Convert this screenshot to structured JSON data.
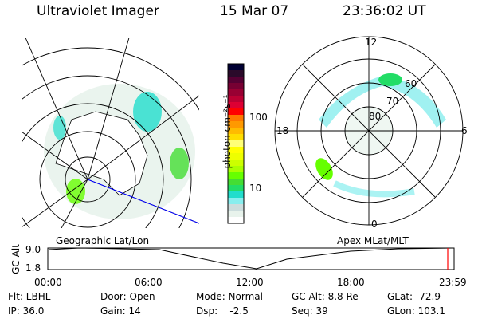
{
  "header": {
    "instrument": "Ultraviolet Imager",
    "date": "15 Mar 07",
    "time": "23:36:02 UT"
  },
  "colorbar": {
    "label": "photon cm⁻²s⁻¹",
    "ticks": [
      "100",
      "10"
    ],
    "colors": [
      "#000033",
      "#2a0a2a",
      "#550033",
      "#770033",
      "#990033",
      "#bb0033",
      "#dd0033",
      "#ff0000",
      "#ff7700",
      "#ff9900",
      "#ffbb00",
      "#ffdd00",
      "#ffff77",
      "#ffff00",
      "#eeff00",
      "#ccff00",
      "#aaff00",
      "#66ff00",
      "#44dd33",
      "#22dd66",
      "#22ddcc",
      "#88eeee",
      "#ccdddd",
      "#e8f3ec",
      "#ffffff"
    ]
  },
  "left_map": {
    "label": "Geographic Lat/Lon"
  },
  "right_map": {
    "label": "Apex MLat/MLT",
    "mlt_labels": {
      "top": "12",
      "left": "18",
      "right": "6",
      "bottom": "0"
    },
    "lat_labels": [
      "80",
      "70",
      "60"
    ]
  },
  "altitude_plot": {
    "ylabel": "GC Alt",
    "yticks": [
      "9.0",
      "1.8"
    ],
    "xticks": [
      "00:00",
      "06:00",
      "12:00",
      "18:00",
      "23:59"
    ],
    "current_marker_color": "#ff0000"
  },
  "status": [
    [
      {
        "text": "Flt: LBHL"
      },
      {
        "text": "IP: 36.0"
      }
    ],
    [
      {
        "text": "Door: Open"
      },
      {
        "text": "Gain: 14"
      }
    ],
    [
      {
        "text": "Mode: Normal"
      },
      {
        "text": "Dsp:    -2.5"
      }
    ],
    [
      {
        "text": "GC Alt: 8.8 Re"
      },
      {
        "text": "Seq: 39"
      }
    ],
    [
      {
        "text": "GLat: -72.9"
      },
      {
        "text": "GLon: 103.1"
      }
    ]
  ]
}
